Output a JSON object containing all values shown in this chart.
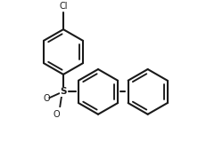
{
  "background": "#ffffff",
  "line_color": "#1a1a1a",
  "line_width": 1.5,
  "bond_width": 1.5,
  "text_color": "#1a1a1a",
  "cl_label": "Cl",
  "s_label": "S",
  "o_label": "O",
  "figsize": [
    2.22,
    1.6
  ],
  "dpi": 100
}
